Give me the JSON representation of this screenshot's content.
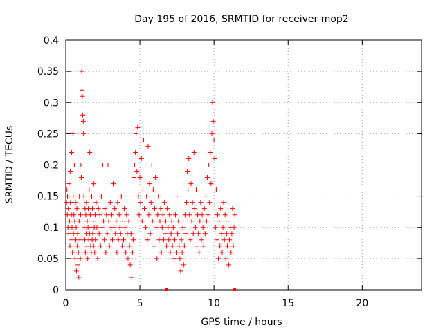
{
  "chart_data": {
    "type": "scatter",
    "title": "Day 195 of 2016, SRMTID for receiver mop2",
    "xlabel": "GPS time / hours",
    "ylabel": "SRMTID / TECUs",
    "xlim": [
      0,
      24
    ],
    "ylim": [
      0,
      0.4
    ],
    "x_ticks": [
      0,
      5,
      10,
      15,
      20
    ],
    "x_tick_labels": [
      "0",
      "5",
      "10",
      "15",
      "20"
    ],
    "y_ticks": [
      0,
      0.05,
      0.1,
      0.15,
      0.2,
      0.25,
      0.3,
      0.35,
      0.4
    ],
    "y_tick_labels": [
      "0",
      "0.05",
      "0.1",
      "0.15",
      "0.2",
      "0.25",
      "0.3",
      "0.35",
      "0.4"
    ],
    "grid": true,
    "marker": "+",
    "color": "#ff0000",
    "zero_markers_x": [
      6.8,
      11.4
    ],
    "series": [
      {
        "name": "SRMTID",
        "points": [
          [
            0.05,
            0.14
          ],
          [
            0.08,
            0.16
          ],
          [
            0.1,
            0.12
          ],
          [
            0.12,
            0.15
          ],
          [
            0.15,
            0.1
          ],
          [
            0.18,
            0.13
          ],
          [
            0.2,
            0.09
          ],
          [
            0.22,
            0.17
          ],
          [
            0.25,
            0.11
          ],
          [
            0.28,
            0.07
          ],
          [
            0.3,
            0.19
          ],
          [
            0.32,
            0.14
          ],
          [
            0.35,
            0.08
          ],
          [
            0.38,
            0.12
          ],
          [
            0.4,
            0.22
          ],
          [
            0.42,
            0.1
          ],
          [
            0.45,
            0.06
          ],
          [
            0.48,
            0.25
          ],
          [
            0.5,
            0.15
          ],
          [
            0.52,
            0.09
          ],
          [
            0.55,
            0.12
          ],
          [
            0.58,
            0.2
          ],
          [
            0.6,
            0.11
          ],
          [
            0.62,
            0.05
          ],
          [
            0.65,
            0.14
          ],
          [
            0.68,
            0.08
          ],
          [
            0.7,
            0.1
          ],
          [
            0.72,
            0.03
          ],
          [
            0.75,
            0.13
          ],
          [
            0.78,
            0.07
          ],
          [
            0.8,
            0.09
          ],
          [
            0.82,
            0.04
          ],
          [
            0.85,
            0.06
          ],
          [
            0.88,
            0.02
          ],
          [
            0.9,
            0.11
          ],
          [
            0.92,
            0.15
          ],
          [
            0.95,
            0.08
          ],
          [
            0.98,
            0.05
          ],
          [
            1.0,
            0.12
          ],
          [
            1.02,
            0.2
          ],
          [
            1.05,
            0.18
          ],
          [
            1.08,
            0.35
          ],
          [
            1.1,
            0.32
          ],
          [
            1.12,
            0.31
          ],
          [
            1.15,
            0.28
          ],
          [
            1.18,
            0.27
          ],
          [
            1.2,
            0.25
          ],
          [
            1.22,
            0.15
          ],
          [
            1.25,
            0.1
          ],
          [
            1.28,
            0.08
          ],
          [
            1.3,
            0.13
          ],
          [
            1.32,
            0.06
          ],
          [
            1.35,
            0.12
          ],
          [
            1.38,
            0.09
          ],
          [
            1.4,
            0.14
          ],
          [
            1.42,
            0.07
          ],
          [
            1.45,
            0.11
          ],
          [
            1.48,
            0.05
          ],
          [
            1.5,
            0.1
          ],
          [
            1.52,
            0.13
          ],
          [
            1.55,
            0.08
          ],
          [
            1.58,
            0.16
          ],
          [
            1.6,
            0.09
          ],
          [
            1.62,
            0.22
          ],
          [
            1.65,
            0.12
          ],
          [
            1.68,
            0.07
          ],
          [
            1.7,
            0.1
          ],
          [
            1.72,
            0.06
          ],
          [
            1.75,
            0.15
          ],
          [
            1.78,
            0.08
          ],
          [
            1.8,
            0.13
          ],
          [
            1.82,
            0.09
          ],
          [
            1.85,
            0.11
          ],
          [
            1.88,
            0.07
          ],
          [
            1.9,
            0.17
          ],
          [
            1.92,
            0.1
          ],
          [
            1.95,
            0.06
          ],
          [
            1.98,
            0.12
          ],
          [
            2.0,
            0.08
          ],
          [
            2.05,
            0.14
          ],
          [
            2.1,
            0.1
          ],
          [
            2.15,
            0.05
          ],
          [
            2.2,
            0.13
          ],
          [
            2.25,
            0.09
          ],
          [
            2.3,
            0.12
          ],
          [
            2.35,
            0.07
          ],
          [
            2.4,
            0.15
          ],
          [
            2.45,
            0.1
          ],
          [
            2.5,
            0.2
          ],
          [
            2.55,
            0.11
          ],
          [
            2.6,
            0.08
          ],
          [
            2.65,
            0.13
          ],
          [
            2.7,
            0.06
          ],
          [
            2.75,
            0.12
          ],
          [
            2.8,
            0.09
          ],
          [
            2.85,
            0.2
          ],
          [
            2.9,
            0.11
          ],
          [
            2.95,
            0.07
          ],
          [
            3.0,
            0.14
          ],
          [
            3.05,
            0.1
          ],
          [
            3.1,
            0.12
          ],
          [
            3.15,
            0.08
          ],
          [
            3.2,
            0.17
          ],
          [
            3.25,
            0.1
          ],
          [
            3.3,
            0.13
          ],
          [
            3.35,
            0.09
          ],
          [
            3.4,
            0.11
          ],
          [
            3.45,
            0.06
          ],
          [
            3.5,
            0.14
          ],
          [
            3.55,
            0.08
          ],
          [
            3.6,
            0.12
          ],
          [
            3.65,
            0.1
          ],
          [
            3.7,
            0.09
          ],
          [
            3.75,
            0.15
          ],
          [
            3.8,
            0.07
          ],
          [
            3.85,
            0.11
          ],
          [
            3.9,
            0.08
          ],
          [
            3.95,
            0.13
          ],
          [
            4.0,
            0.1
          ],
          [
            4.05,
            0.06
          ],
          [
            4.1,
            0.12
          ],
          [
            4.15,
            0.09
          ],
          [
            4.2,
            0.05
          ],
          [
            4.25,
            0.11
          ],
          [
            4.3,
            0.07
          ],
          [
            4.35,
            0.04
          ],
          [
            4.4,
            0.09
          ],
          [
            4.45,
            0.02
          ],
          [
            4.5,
            0.06
          ],
          [
            4.55,
            0.08
          ],
          [
            4.6,
            0.18
          ],
          [
            4.65,
            0.2
          ],
          [
            4.7,
            0.22
          ],
          [
            4.75,
            0.25
          ],
          [
            4.8,
            0.19
          ],
          [
            4.85,
            0.26
          ],
          [
            4.9,
            0.15
          ],
          [
            4.95,
            0.12
          ],
          [
            5.0,
            0.18
          ],
          [
            5.05,
            0.14
          ],
          [
            5.1,
            0.21
          ],
          [
            5.15,
            0.11
          ],
          [
            5.2,
            0.16
          ],
          [
            5.25,
            0.24
          ],
          [
            5.3,
            0.13
          ],
          [
            5.35,
            0.2
          ],
          [
            5.4,
            0.1
          ],
          [
            5.45,
            0.15
          ],
          [
            5.5,
            0.08
          ],
          [
            5.55,
            0.23
          ],
          [
            5.6,
            0.12
          ],
          [
            5.65,
            0.17
          ],
          [
            5.7,
            0.09
          ],
          [
            5.75,
            0.14
          ],
          [
            5.8,
            0.2
          ],
          [
            5.85,
            0.11
          ],
          [
            5.9,
            0.16
          ],
          [
            5.95,
            0.07
          ],
          [
            6.0,
            0.13
          ],
          [
            6.05,
            0.18
          ],
          [
            6.1,
            0.1
          ],
          [
            6.15,
            0.05
          ],
          [
            6.2,
            0.12
          ],
          [
            6.25,
            0.15
          ],
          [
            6.3,
            0.08
          ],
          [
            6.35,
            0.11
          ],
          [
            6.4,
            0.13
          ],
          [
            6.45,
            0.06
          ],
          [
            6.5,
            0.1
          ],
          [
            6.55,
            0.12
          ],
          [
            6.6,
            0.08
          ],
          [
            6.65,
            0.14
          ],
          [
            6.7,
            0.09
          ],
          [
            6.75,
            0.11
          ],
          [
            6.8,
            0.07
          ],
          [
            6.85,
            0.13
          ],
          [
            6.9,
            0.1
          ],
          [
            6.95,
            0.08
          ],
          [
            7.0,
            0.12
          ],
          [
            7.05,
            0.06
          ],
          [
            7.1,
            0.09
          ],
          [
            7.15,
            0.11
          ],
          [
            7.2,
            0.07
          ],
          [
            7.25,
            0.1
          ],
          [
            7.3,
            0.05
          ],
          [
            7.35,
            0.08
          ],
          [
            7.4,
            0.12
          ],
          [
            7.45,
            0.06
          ],
          [
            7.5,
            0.15
          ],
          [
            7.55,
            0.09
          ],
          [
            7.6,
            0.11
          ],
          [
            7.65,
            0.07
          ],
          [
            7.7,
            0.05
          ],
          [
            7.75,
            0.03
          ],
          [
            7.8,
            0.08
          ],
          [
            7.85,
            0.06
          ],
          [
            7.9,
            0.1
          ],
          [
            7.95,
            0.04
          ],
          [
            8.0,
            0.07
          ],
          [
            8.05,
            0.12
          ],
          [
            8.1,
            0.09
          ],
          [
            8.15,
            0.14
          ],
          [
            8.2,
            0.19
          ],
          [
            8.25,
            0.16
          ],
          [
            8.3,
            0.21
          ],
          [
            8.35,
            0.12
          ],
          [
            8.4,
            0.08
          ],
          [
            8.45,
            0.17
          ],
          [
            8.5,
            0.11
          ],
          [
            8.55,
            0.14
          ],
          [
            8.6,
            0.09
          ],
          [
            8.65,
            0.22
          ],
          [
            8.7,
            0.13
          ],
          [
            8.75,
            0.1
          ],
          [
            8.8,
            0.16
          ],
          [
            8.85,
            0.07
          ],
          [
            8.9,
            0.12
          ],
          [
            8.95,
            0.09
          ],
          [
            9.0,
            0.06
          ],
          [
            9.05,
            0.11
          ],
          [
            9.1,
            0.14
          ],
          [
            9.15,
            0.08
          ],
          [
            9.2,
            0.12
          ],
          [
            9.25,
            0.1
          ],
          [
            9.3,
            0.07
          ],
          [
            9.35,
            0.13
          ],
          [
            9.4,
            0.09
          ],
          [
            9.45,
            0.15
          ],
          [
            9.5,
            0.11
          ],
          [
            9.55,
            0.18
          ],
          [
            9.6,
            0.12
          ],
          [
            9.65,
            0.2
          ],
          [
            9.7,
            0.14
          ],
          [
            9.75,
            0.22
          ],
          [
            9.8,
            0.17
          ],
          [
            9.85,
            0.25
          ],
          [
            9.9,
            0.3
          ],
          [
            9.95,
            0.27
          ],
          [
            10.0,
            0.24
          ],
          [
            10.05,
            0.21
          ],
          [
            10.1,
            0.1
          ],
          [
            10.15,
            0.16
          ],
          [
            10.2,
            0.08
          ],
          [
            10.25,
            0.12
          ],
          [
            10.3,
            0.05
          ],
          [
            10.35,
            0.11
          ],
          [
            10.4,
            0.07
          ],
          [
            10.45,
            0.13
          ],
          [
            10.5,
            0.09
          ],
          [
            10.55,
            0.06
          ],
          [
            10.6,
            0.1
          ],
          [
            10.65,
            0.14
          ],
          [
            10.7,
            0.08
          ],
          [
            10.75,
            0.12
          ],
          [
            10.8,
            0.05
          ],
          [
            10.85,
            0.09
          ],
          [
            10.9,
            0.07
          ],
          [
            10.95,
            0.11
          ],
          [
            11.0,
            0.04
          ],
          [
            11.05,
            0.08
          ],
          [
            11.1,
            0.1
          ],
          [
            11.15,
            0.06
          ],
          [
            11.2,
            0.09
          ],
          [
            11.25,
            0.13
          ],
          [
            11.3,
            0.07
          ],
          [
            11.35,
            0.1
          ],
          [
            11.4,
            0.12
          ]
        ]
      }
    ]
  }
}
